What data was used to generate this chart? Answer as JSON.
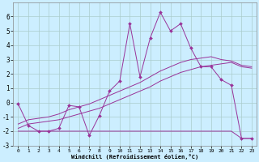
{
  "xlabel": "Windchill (Refroidissement éolien,°C)",
  "bg_color": "#cceeff",
  "grid_color": "#aacccc",
  "line_color": "#993399",
  "hours": [
    0,
    1,
    2,
    3,
    4,
    5,
    6,
    7,
    8,
    9,
    10,
    11,
    12,
    13,
    14,
    15,
    16,
    17,
    18,
    19,
    20,
    21,
    22,
    23
  ],
  "main_values": [
    -0.1,
    -1.6,
    -2.0,
    -2.0,
    -1.8,
    -0.2,
    -0.3,
    -2.3,
    -0.9,
    0.8,
    1.5,
    5.5,
    1.8,
    4.5,
    6.3,
    5.0,
    5.5,
    3.8,
    2.5,
    2.5,
    1.6,
    1.2,
    -2.5,
    -2.5
  ],
  "flat_min": [
    -2.0,
    -2.0,
    -2.0,
    -2.0,
    -2.0,
    -2.0,
    -2.0,
    -2.0,
    -2.0,
    -2.0,
    -2.0,
    -2.0,
    -2.0,
    -2.0,
    -2.0,
    -2.0,
    -2.0,
    -2.0,
    -2.0,
    -2.0,
    -2.0,
    -2.0,
    -2.5,
    -2.5
  ],
  "trend1": [
    -1.8,
    -1.5,
    -1.4,
    -1.3,
    -1.2,
    -1.0,
    -0.8,
    -0.6,
    -0.4,
    -0.1,
    0.2,
    0.5,
    0.8,
    1.1,
    1.5,
    1.8,
    2.1,
    2.3,
    2.5,
    2.6,
    2.7,
    2.8,
    2.5,
    2.4
  ],
  "trend2": [
    -1.5,
    -1.2,
    -1.1,
    -1.0,
    -0.8,
    -0.5,
    -0.3,
    -0.1,
    0.2,
    0.5,
    0.8,
    1.1,
    1.4,
    1.8,
    2.2,
    2.5,
    2.8,
    3.0,
    3.1,
    3.2,
    3.0,
    2.9,
    2.6,
    2.5
  ],
  "ylim": [
    -3,
    7
  ],
  "xlim_min": -0.5,
  "xlim_max": 23.5,
  "yticks": [
    -3,
    -2,
    -1,
    0,
    1,
    2,
    3,
    4,
    5,
    6
  ],
  "xticks": [
    0,
    1,
    2,
    3,
    4,
    5,
    6,
    7,
    8,
    9,
    10,
    11,
    12,
    13,
    14,
    15,
    16,
    17,
    18,
    19,
    20,
    21,
    22,
    23
  ]
}
